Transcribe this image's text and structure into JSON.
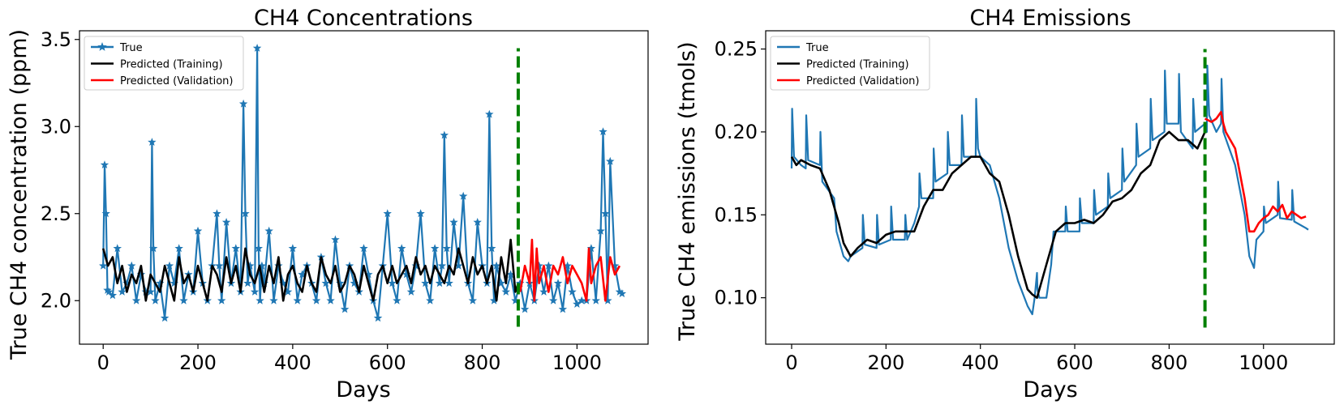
{
  "chart_data": [
    {
      "type": "line",
      "title": "CH4 Concentrations",
      "xlabel": "Days",
      "ylabel": "True CH4 concentration (ppm)",
      "xlim": [
        -50,
        1150
      ],
      "ylim": [
        1.75,
        3.55
      ],
      "xticks": [
        0,
        200,
        400,
        600,
        800,
        1000
      ],
      "yticks": [
        2.0,
        2.5,
        3.0,
        3.5
      ],
      "ytick_labels": [
        "2.0",
        "2.5",
        "3.0",
        "3.5"
      ],
      "legend": [
        "True",
        "Predicted (Training)",
        "Predicted (Validation)"
      ],
      "legend_position": "upper-left",
      "split_day": 876,
      "split_range": [
        1.85,
        3.45
      ],
      "series": [
        {
          "name": "True",
          "color": "#1f77b4",
          "marker": "star",
          "x": [
            0,
            3,
            6,
            9,
            12,
            20,
            30,
            40,
            50,
            60,
            70,
            80,
            90,
            100,
            103,
            106,
            110,
            120,
            130,
            140,
            150,
            160,
            170,
            180,
            190,
            200,
            210,
            220,
            230,
            240,
            245,
            250,
            260,
            270,
            280,
            290,
            296,
            300,
            305,
            310,
            320,
            325,
            328,
            331,
            335,
            340,
            350,
            360,
            370,
            380,
            390,
            400,
            410,
            420,
            430,
            440,
            450,
            460,
            470,
            480,
            490,
            500,
            510,
            520,
            530,
            540,
            550,
            560,
            570,
            580,
            590,
            600,
            610,
            620,
            630,
            640,
            650,
            660,
            670,
            680,
            690,
            700,
            710,
            715,
            720,
            725,
            730,
            740,
            750,
            760,
            770,
            780,
            790,
            800,
            810,
            815,
            820,
            825,
            830,
            840,
            850,
            860,
            870,
            880,
            890,
            900,
            910,
            920,
            930,
            940,
            950,
            960,
            970,
            980,
            990,
            1000,
            1010,
            1020,
            1030,
            1040,
            1050,
            1055,
            1060,
            1065,
            1070,
            1080,
            1090,
            1095
          ],
          "y": [
            2.2,
            2.78,
            2.5,
            2.06,
            2.05,
            2.03,
            2.3,
            2.05,
            2.1,
            2.2,
            2.0,
            2.15,
            2.05,
            2.05,
            2.91,
            2.3,
            2.0,
            2.1,
            1.9,
            2.2,
            2.1,
            2.3,
            2.0,
            2.15,
            2.05,
            2.4,
            2.1,
            2.0,
            2.2,
            2.5,
            2.2,
            2.0,
            2.45,
            2.1,
            2.3,
            2.05,
            3.13,
            2.5,
            2.1,
            2.2,
            2.05,
            3.45,
            2.3,
            2.0,
            2.2,
            2.1,
            2.4,
            2.0,
            2.2,
            2.1,
            2.05,
            2.3,
            2.0,
            2.15,
            2.2,
            2.1,
            2.0,
            2.25,
            2.1,
            2.0,
            2.35,
            2.1,
            1.95,
            2.2,
            2.1,
            2.05,
            2.3,
            2.15,
            2.0,
            1.9,
            2.2,
            2.5,
            2.1,
            2.0,
            2.3,
            2.15,
            2.05,
            2.2,
            2.5,
            2.1,
            2.0,
            2.3,
            2.1,
            2.2,
            2.95,
            2.3,
            2.1,
            2.45,
            2.2,
            2.6,
            2.1,
            2.0,
            2.45,
            2.2,
            2.1,
            3.07,
            2.3,
            2.0,
            2.2,
            2.1,
            2.05,
            2.15,
            2.0,
            2.1,
            1.95,
            2.1,
            2.0,
            2.2,
            2.05,
            2.2,
            2.0,
            2.1,
            1.95,
            2.2,
            2.05,
            1.98,
            2.0,
            2.0,
            2.3,
            2.0,
            2.4,
            2.97,
            2.5,
            2.0,
            2.8,
            2.2,
            2.05,
            2.04
          ]
        },
        {
          "name": "Predicted (Training)",
          "color": "#000000",
          "x": [
            0,
            10,
            20,
            30,
            40,
            50,
            60,
            70,
            80,
            90,
            100,
            110,
            120,
            130,
            140,
            150,
            160,
            170,
            180,
            190,
            200,
            210,
            220,
            230,
            240,
            250,
            260,
            270,
            280,
            290,
            300,
            310,
            320,
            330,
            340,
            350,
            360,
            370,
            380,
            390,
            400,
            410,
            420,
            430,
            440,
            450,
            460,
            470,
            480,
            490,
            500,
            510,
            520,
            530,
            540,
            550,
            560,
            570,
            580,
            590,
            600,
            610,
            620,
            630,
            640,
            650,
            660,
            670,
            680,
            690,
            700,
            710,
            720,
            730,
            740,
            750,
            760,
            770,
            780,
            790,
            800,
            810,
            820,
            830,
            840,
            850,
            860,
            870,
            876
          ],
          "y": [
            2.3,
            2.2,
            2.25,
            2.1,
            2.2,
            2.05,
            2.15,
            2.1,
            2.2,
            2.0,
            2.15,
            2.1,
            2.05,
            2.2,
            2.1,
            2.0,
            2.25,
            2.1,
            2.15,
            2.05,
            2.2,
            2.1,
            2.0,
            2.2,
            2.15,
            2.05,
            2.25,
            2.1,
            2.2,
            2.05,
            2.3,
            2.15,
            2.1,
            2.2,
            2.05,
            2.2,
            2.1,
            2.25,
            2.0,
            2.15,
            2.2,
            2.1,
            2.05,
            2.2,
            2.1,
            2.05,
            2.25,
            2.15,
            2.1,
            2.2,
            2.05,
            2.1,
            2.2,
            2.15,
            2.05,
            2.2,
            2.1,
            2.0,
            2.15,
            2.2,
            2.1,
            2.2,
            2.1,
            2.15,
            2.2,
            2.1,
            2.25,
            2.15,
            2.2,
            2.1,
            2.2,
            2.15,
            2.1,
            2.2,
            2.15,
            2.3,
            2.2,
            2.1,
            2.25,
            2.15,
            2.2,
            2.1,
            2.2,
            2.0,
            2.25,
            2.1,
            2.35,
            2.05,
            2.1
          ]
        },
        {
          "name": "Predicted (Validation)",
          "color": "#ff0000",
          "x": [
            880,
            890,
            900,
            905,
            910,
            915,
            920,
            930,
            940,
            950,
            960,
            970,
            980,
            990,
            1000,
            1010,
            1020,
            1025,
            1030,
            1040,
            1050,
            1060,
            1070,
            1080,
            1090
          ],
          "y": [
            2.05,
            2.2,
            2.1,
            2.35,
            2.0,
            2.3,
            2.1,
            2.2,
            2.05,
            2.2,
            2.15,
            2.25,
            2.1,
            2.2,
            2.15,
            2.1,
            2.0,
            2.3,
            2.1,
            2.2,
            2.25,
            2.0,
            2.25,
            2.15,
            2.2
          ]
        }
      ]
    },
    {
      "type": "line",
      "title": "CH4 Emissions",
      "xlabel": "Days",
      "ylabel": "True CH4 emissions (tmols)",
      "xlim": [
        -55,
        1150
      ],
      "ylim": [
        0.072,
        0.261
      ],
      "xticks": [
        0,
        200,
        400,
        600,
        800,
        1000
      ],
      "yticks": [
        0.1,
        0.15,
        0.2,
        0.25
      ],
      "ytick_labels": [
        "0.10",
        "0.15",
        "0.20",
        "0.25"
      ],
      "legend": [
        "True",
        "Predicted (Training)",
        "Predicted (Validation)"
      ],
      "legend_position": "upper-left",
      "split_day": 876,
      "split_range": [
        0.082,
        0.25
      ],
      "series": [
        {
          "name": "True",
          "color": "#1f77b4",
          "x": [
            0,
            1,
            5,
            20,
            30,
            31,
            35,
            60,
            61,
            65,
            90,
            95,
            100,
            110,
            120,
            125,
            150,
            151,
            155,
            180,
            181,
            185,
            210,
            211,
            215,
            240,
            241,
            245,
            260,
            270,
            271,
            275,
            300,
            301,
            305,
            330,
            331,
            335,
            360,
            361,
            365,
            390,
            391,
            395,
            400,
            420,
            430,
            440,
            460,
            480,
            500,
            510,
            515,
            520,
            521,
            525,
            540,
            550,
            555,
            580,
            581,
            585,
            610,
            611,
            615,
            640,
            641,
            645,
            670,
            671,
            675,
            700,
            701,
            705,
            730,
            731,
            735,
            760,
            761,
            765,
            790,
            791,
            795,
            820,
            821,
            825,
            850,
            851,
            855,
            876,
            880,
            881,
            885,
            900,
            910,
            911,
            915,
            940,
            960,
            970,
            980,
            985,
            1000,
            1001,
            1005,
            1030,
            1031,
            1035,
            1060,
            1061,
            1065,
            1090,
            1095
          ],
          "y": [
            0.178,
            0.214,
            0.185,
            0.18,
            0.178,
            0.21,
            0.183,
            0.18,
            0.2,
            0.17,
            0.16,
            0.14,
            0.135,
            0.125,
            0.122,
            0.125,
            0.13,
            0.15,
            0.132,
            0.13,
            0.15,
            0.132,
            0.135,
            0.155,
            0.135,
            0.135,
            0.15,
            0.135,
            0.145,
            0.155,
            0.175,
            0.16,
            0.16,
            0.19,
            0.17,
            0.175,
            0.2,
            0.18,
            0.18,
            0.21,
            0.185,
            0.185,
            0.22,
            0.19,
            0.185,
            0.18,
            0.17,
            0.16,
            0.13,
            0.11,
            0.095,
            0.09,
            0.1,
            0.115,
            0.105,
            0.1,
            0.1,
            0.12,
            0.14,
            0.14,
            0.155,
            0.14,
            0.14,
            0.16,
            0.145,
            0.145,
            0.165,
            0.15,
            0.155,
            0.175,
            0.16,
            0.165,
            0.19,
            0.17,
            0.18,
            0.205,
            0.185,
            0.19,
            0.22,
            0.195,
            0.2,
            0.237,
            0.205,
            0.205,
            0.235,
            0.2,
            0.19,
            0.22,
            0.2,
            0.205,
            0.2,
            0.24,
            0.21,
            0.2,
            0.205,
            0.232,
            0.2,
            0.18,
            0.15,
            0.125,
            0.118,
            0.135,
            0.14,
            0.155,
            0.145,
            0.15,
            0.17,
            0.148,
            0.147,
            0.165,
            0.146,
            0.142,
            0.141
          ]
        },
        {
          "name": "Predicted (Training)",
          "color": "#000000",
          "x": [
            0,
            10,
            20,
            40,
            60,
            80,
            100,
            110,
            125,
            140,
            160,
            180,
            200,
            220,
            240,
            260,
            280,
            300,
            320,
            340,
            360,
            380,
            400,
            420,
            440,
            460,
            480,
            500,
            510,
            520,
            540,
            560,
            580,
            600,
            620,
            640,
            660,
            680,
            700,
            720,
            740,
            760,
            780,
            800,
            820,
            840,
            860,
            876
          ],
          "y": [
            0.185,
            0.18,
            0.183,
            0.18,
            0.178,
            0.165,
            0.145,
            0.133,
            0.125,
            0.13,
            0.135,
            0.133,
            0.138,
            0.14,
            0.14,
            0.14,
            0.155,
            0.165,
            0.165,
            0.175,
            0.18,
            0.185,
            0.185,
            0.175,
            0.17,
            0.15,
            0.125,
            0.105,
            0.102,
            0.1,
            0.12,
            0.14,
            0.145,
            0.145,
            0.147,
            0.145,
            0.15,
            0.158,
            0.16,
            0.165,
            0.175,
            0.18,
            0.195,
            0.2,
            0.195,
            0.195,
            0.19,
            0.2
          ]
        },
        {
          "name": "Predicted (Validation)",
          "color": "#ff0000",
          "x": [
            876,
            890,
            900,
            910,
            915,
            920,
            930,
            940,
            950,
            960,
            970,
            980,
            990,
            1000,
            1010,
            1020,
            1030,
            1040,
            1050,
            1060,
            1070,
            1080,
            1090
          ],
          "y": [
            0.208,
            0.206,
            0.208,
            0.212,
            0.205,
            0.2,
            0.195,
            0.19,
            0.175,
            0.16,
            0.14,
            0.14,
            0.145,
            0.148,
            0.15,
            0.155,
            0.152,
            0.156,
            0.148,
            0.152,
            0.15,
            0.148,
            0.149
          ]
        }
      ]
    }
  ]
}
